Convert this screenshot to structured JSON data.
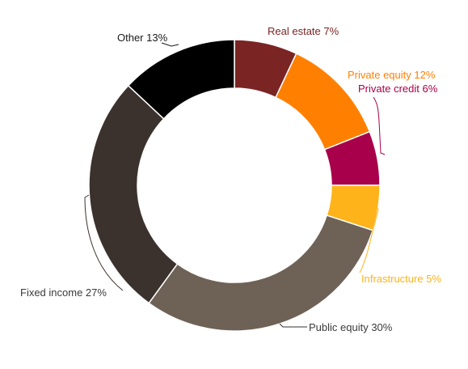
{
  "chart_data": {
    "type": "pie",
    "subtype": "donut",
    "title": "",
    "legend": "none",
    "slices": [
      {
        "label": "Real estate",
        "value": 7,
        "value_label": "Real estate 7%",
        "color": "#7a2424",
        "label_color": "#7a2424"
      },
      {
        "label": "Private equity",
        "value": 12,
        "value_label": "Private equity 12%",
        "color": "#ff8000",
        "label_color": "#ff8000"
      },
      {
        "label": "Private credit",
        "value": 6,
        "value_label": "Private credit 6%",
        "color": "#a8004a",
        "label_color": "#a8004a"
      },
      {
        "label": "Infrastructure",
        "value": 5,
        "value_label": "Infrastructure 5%",
        "color": "#ffb31a",
        "label_color": "#ffb31a"
      },
      {
        "label": "Public equity",
        "value": 30,
        "value_label": "Public equity 30%",
        "color": "#6e6156",
        "label_color": "#3a3a3a"
      },
      {
        "label": "Fixed income",
        "value": 27,
        "value_label": "Fixed income 27%",
        "color": "#3b312d",
        "label_color": "#3a3a3a"
      },
      {
        "label": "Other",
        "value": 13,
        "value_label": "Other 13%",
        "color": "#000000",
        "label_color": "#1a1a1a"
      }
    ]
  }
}
